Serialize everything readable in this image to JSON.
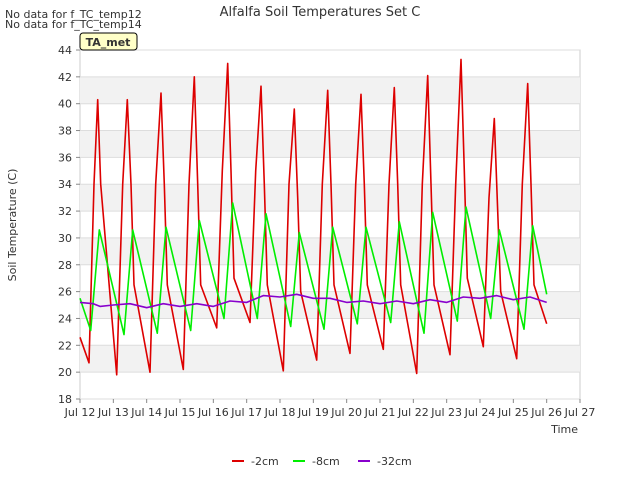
{
  "notes": [
    "No data for f_TC_temp12",
    "No data for f_TC_temp14"
  ],
  "badge": "TA_met",
  "chart_data": {
    "type": "line",
    "title": "Alfalfa Soil Temperatures Set C",
    "xlabel": "Time",
    "ylabel": "Soil Temperature (C)",
    "xlim": [
      12,
      27
    ],
    "ylim": [
      18,
      44
    ],
    "xticks": [
      12,
      13,
      14,
      15,
      16,
      17,
      18,
      19,
      20,
      21,
      22,
      23,
      24,
      25,
      26,
      27
    ],
    "xtick_labels": [
      "Jul 12",
      "Jul 13",
      "Jul 14",
      "Jul 15",
      "Jul 16",
      "Jul 17",
      "Jul 18",
      "Jul 19",
      "Jul 20",
      "Jul 21",
      "Jul 22",
      "Jul 23",
      "Jul 24",
      "Jul 25",
      "Jul 26",
      "Jul 27"
    ],
    "yticks": [
      18,
      20,
      22,
      24,
      26,
      28,
      30,
      32,
      34,
      36,
      38,
      40,
      42,
      44
    ],
    "ytick_labels": [
      "18",
      "20",
      "22",
      "24",
      "26",
      "28",
      "30",
      "32",
      "34",
      "36",
      "38",
      "40",
      "42",
      "44"
    ],
    "grid": true,
    "legend_position": "bottom-center",
    "series": [
      {
        "name": "-2cm",
        "color": "#dd0000",
        "x": [
          12.0,
          12.27,
          12.42,
          12.53,
          12.62,
          13.1,
          13.28,
          13.42,
          13.53,
          13.62,
          14.1,
          14.27,
          14.43,
          14.53,
          14.62,
          15.1,
          15.27,
          15.43,
          15.53,
          15.62,
          16.1,
          16.27,
          16.43,
          16.53,
          16.62,
          17.1,
          17.27,
          17.43,
          17.53,
          17.62,
          18.1,
          18.27,
          18.43,
          18.53,
          18.62,
          19.1,
          19.27,
          19.43,
          19.53,
          19.62,
          20.1,
          20.27,
          20.43,
          20.53,
          20.62,
          21.1,
          21.27,
          21.43,
          21.53,
          21.62,
          22.1,
          22.27,
          22.43,
          22.53,
          22.62,
          23.1,
          23.27,
          23.43,
          23.53,
          23.62,
          24.1,
          24.27,
          24.43,
          24.53,
          24.62,
          25.1,
          25.27,
          25.43,
          25.53,
          25.62,
          26.0
        ],
        "y": [
          22.6,
          20.7,
          34.0,
          40.3,
          34.0,
          19.8,
          34.0,
          40.3,
          34.0,
          26.5,
          20.0,
          34.0,
          40.8,
          34.0,
          26.5,
          20.2,
          34.0,
          42.0,
          34.0,
          26.5,
          23.3,
          35.0,
          43.0,
          35.0,
          27.0,
          23.7,
          35.0,
          41.3,
          34.0,
          26.5,
          20.1,
          34.0,
          39.6,
          33.0,
          26.0,
          20.9,
          34.0,
          41.0,
          34.0,
          26.5,
          21.4,
          34.0,
          40.7,
          34.0,
          26.5,
          21.7,
          34.0,
          41.2,
          34.0,
          26.5,
          19.9,
          34.0,
          42.1,
          34.0,
          26.5,
          21.3,
          34.0,
          43.3,
          35.0,
          27.0,
          21.9,
          33.0,
          38.9,
          32.0,
          26.0,
          21.0,
          34.0,
          41.5,
          34.0,
          26.5,
          23.6
        ]
      },
      {
        "name": "-8cm",
        "color": "#00ee00",
        "x": [
          12.0,
          12.32,
          12.58,
          13.32,
          13.58,
          14.32,
          14.58,
          15.32,
          15.58,
          16.32,
          16.58,
          17.32,
          17.58,
          18.32,
          18.58,
          19.32,
          19.58,
          20.32,
          20.58,
          21.32,
          21.58,
          22.32,
          22.58,
          23.32,
          23.58,
          24.32,
          24.58,
          25.32,
          25.58,
          26.0
        ],
        "y": [
          25.5,
          23.1,
          30.6,
          22.8,
          30.6,
          22.9,
          30.8,
          23.1,
          31.3,
          24.0,
          32.6,
          24.0,
          31.8,
          23.4,
          30.4,
          23.2,
          30.8,
          23.6,
          30.8,
          23.7,
          31.2,
          22.9,
          31.9,
          23.8,
          32.3,
          24.0,
          30.6,
          23.2,
          30.9,
          25.8
        ]
      },
      {
        "name": "-32cm",
        "color": "#8800cc",
        "x": [
          12.0,
          12.4,
          12.6,
          13.0,
          13.5,
          14.0,
          14.5,
          15.0,
          15.5,
          16.0,
          16.5,
          17.0,
          17.5,
          18.0,
          18.5,
          19.0,
          19.5,
          20.0,
          20.5,
          21.0,
          21.5,
          22.0,
          22.5,
          23.0,
          23.5,
          24.0,
          24.5,
          25.0,
          25.5,
          26.0
        ],
        "y": [
          25.2,
          25.1,
          24.9,
          25.0,
          25.1,
          24.8,
          25.1,
          24.9,
          25.1,
          24.9,
          25.3,
          25.2,
          25.7,
          25.6,
          25.8,
          25.5,
          25.5,
          25.2,
          25.3,
          25.1,
          25.3,
          25.1,
          25.4,
          25.2,
          25.6,
          25.5,
          25.7,
          25.4,
          25.6,
          25.2
        ]
      }
    ]
  }
}
